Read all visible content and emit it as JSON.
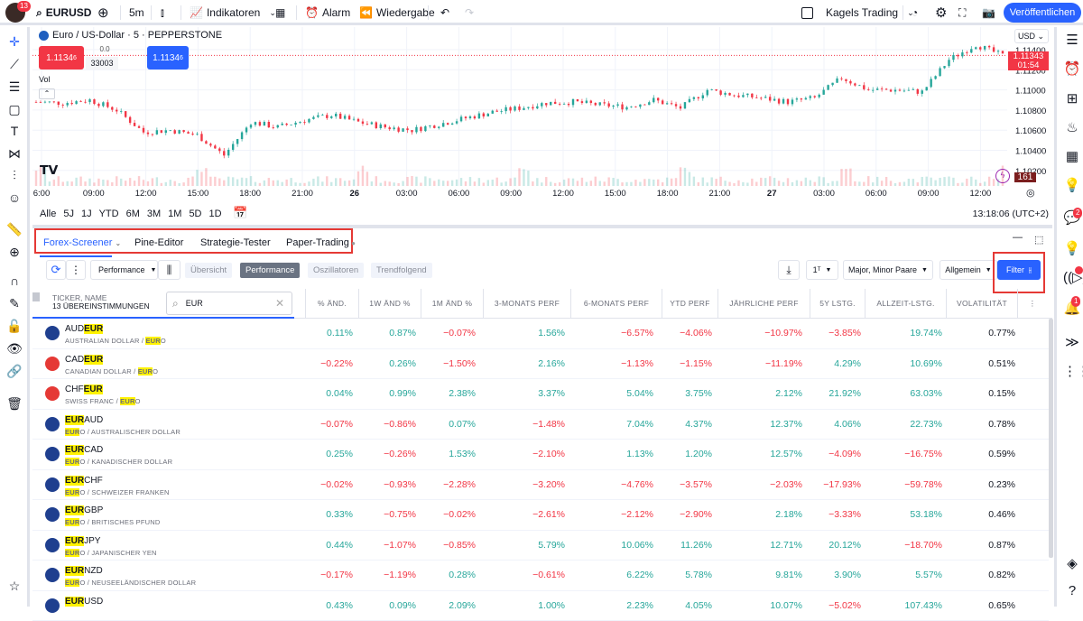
{
  "topbar": {
    "avatar_badge": "13",
    "symbol": "EURUSD",
    "interval": "5m",
    "indicators": "Indikatoren",
    "alarm": "Alarm",
    "replay": "Wiedergabe",
    "layout_name": "Kagels Trading",
    "publish": "Veröffentlichen"
  },
  "chart": {
    "title": "Euro / US-Dollar · 5 · PEPPERSTONE",
    "sell_price": "1.1134",
    "sell_price_sup": "6",
    "spread": "0.0",
    "volume_value": "33003",
    "buy_price": "1.1134",
    "buy_price_sup": "6",
    "volume_label": "Vol",
    "currency": "USD",
    "last_price": "1.11343",
    "countdown": "01:54",
    "volume_tag": "161",
    "price_ticks": [
      "1.11400",
      "1.11200",
      "1.11000",
      "1.10800",
      "1.10600",
      "1.10400",
      "1.10200"
    ],
    "time_ticks": [
      "6:00",
      "09:00",
      "12:00",
      "15:00",
      "18:00",
      "21:00",
      "26",
      "03:00",
      "06:00",
      "09:00",
      "12:00",
      "15:00",
      "18:00",
      "21:00",
      "27",
      "03:00",
      "06:00",
      "09:00",
      "12:00"
    ],
    "price_path": [
      1.1088,
      1.1087,
      1.109,
      1.108,
      1.1058,
      1.106,
      1.1055,
      1.1035,
      1.1068,
      1.1063,
      1.107,
      1.1075,
      1.1068,
      1.1063,
      1.106,
      1.1066,
      1.1072,
      1.1078,
      1.1082,
      1.1087,
      1.1088,
      1.1085,
      1.1083,
      1.109,
      1.1082,
      1.11,
      1.1095,
      1.1092,
      1.1088,
      1.1092,
      1.1112,
      1.11,
      1.11,
      1.1098,
      1.113,
      1.1145,
      1.1134
    ],
    "up_color": "#26a69a",
    "down_color": "#f23645"
  },
  "ranges": [
    "1D",
    "5D",
    "1M",
    "3M",
    "6M",
    "YTD",
    "1J",
    "5J",
    "Alle"
  ],
  "clock": "13:18:06 (UTC+2)",
  "tabs": [
    "Forex-Screener",
    "Pine-Editor",
    "Strategie-Tester",
    "Paper-Trading"
  ],
  "screener": {
    "preset": "Performance",
    "views": [
      "Übersicht",
      "Performance",
      "Oszillatoren",
      "Trendfolgend"
    ],
    "interval": "1ᵀ",
    "pairs": "Major, Minor Paare",
    "general": "Allgemein",
    "filter": "Filter",
    "ticker_header": "TICKER, NAME",
    "matches": "13 ÜBEREINSTIMMUNGEN",
    "search_value": "EUR",
    "columns": [
      "% ÄND.",
      "1W ÄND %",
      "1M ÄND %",
      "3-MONATS PERF",
      "6-MONATS PERF",
      "YTD PERF",
      "JÄHRLICHE PERF",
      "5Y LSTG.",
      "ALLZEIT-LSTG.",
      "VOLATILITÄT"
    ],
    "rows": [
      {
        "pre": "AUD",
        "hl": "EUR",
        "post": "",
        "npre": "AUSTRALIAN DOLLAR / ",
        "nhl": "EUR",
        "npost": "O",
        "flag": "#1f3f8f",
        "v": [
          "0.11%",
          "0.87%",
          "−0.07%",
          "1.56%",
          "−6.57%",
          "−4.06%",
          "−10.97%",
          "−3.85%",
          "19.74%",
          "0.77%"
        ]
      },
      {
        "pre": "CAD",
        "hl": "EUR",
        "post": "",
        "npre": "CANADIAN DOLLAR / ",
        "nhl": "EUR",
        "npost": "O",
        "flag": "#e53935",
        "v": [
          "−0.22%",
          "0.26%",
          "−1.50%",
          "2.16%",
          "−1.13%",
          "−1.15%",
          "−11.19%",
          "4.29%",
          "10.69%",
          "0.51%"
        ]
      },
      {
        "pre": "CHF",
        "hl": "EUR",
        "post": "",
        "npre": "SWISS FRANC / ",
        "nhl": "EUR",
        "npost": "O",
        "flag": "#e53935",
        "v": [
          "0.04%",
          "0.99%",
          "2.38%",
          "3.37%",
          "5.04%",
          "3.75%",
          "2.12%",
          "21.92%",
          "63.03%",
          "0.15%"
        ]
      },
      {
        "pre": "",
        "hl": "EUR",
        "post": "AUD",
        "npre": "",
        "nhl": "EUR",
        "npost": "O / AUSTRALISCHER DOLLAR",
        "flag": "#1f3f8f",
        "v": [
          "−0.07%",
          "−0.86%",
          "0.07%",
          "−1.48%",
          "7.04%",
          "4.37%",
          "12.37%",
          "4.06%",
          "22.73%",
          "0.78%"
        ]
      },
      {
        "pre": "",
        "hl": "EUR",
        "post": "CAD",
        "npre": "",
        "nhl": "EUR",
        "npost": "O / KANADISCHER DOLLAR",
        "flag": "#1f3f8f",
        "v": [
          "0.25%",
          "−0.26%",
          "1.53%",
          "−2.10%",
          "1.13%",
          "1.20%",
          "12.57%",
          "−4.09%",
          "−16.75%",
          "0.59%"
        ]
      },
      {
        "pre": "",
        "hl": "EUR",
        "post": "CHF",
        "npre": "",
        "nhl": "EUR",
        "npost": "O / SCHWEIZER FRANKEN",
        "flag": "#1f3f8f",
        "v": [
          "−0.02%",
          "−0.93%",
          "−2.28%",
          "−3.20%",
          "−4.76%",
          "−3.57%",
          "−2.03%",
          "−17.93%",
          "−59.78%",
          "0.23%"
        ]
      },
      {
        "pre": "",
        "hl": "EUR",
        "post": "GBP",
        "npre": "",
        "nhl": "EUR",
        "npost": "O / BRITISCHES PFUND",
        "flag": "#1f3f8f",
        "v": [
          "0.33%",
          "−0.75%",
          "−0.02%",
          "−2.61%",
          "−2.12%",
          "−2.90%",
          "2.18%",
          "−3.33%",
          "53.18%",
          "0.46%"
        ]
      },
      {
        "pre": "",
        "hl": "EUR",
        "post": "JPY",
        "npre": "",
        "nhl": "EUR",
        "npost": "O / JAPANISCHER YEN",
        "flag": "#1f3f8f",
        "v": [
          "0.44%",
          "−1.07%",
          "−0.85%",
          "5.79%",
          "10.06%",
          "11.26%",
          "12.71%",
          "20.12%",
          "−18.70%",
          "0.87%"
        ]
      },
      {
        "pre": "",
        "hl": "EUR",
        "post": "NZD",
        "npre": "",
        "nhl": "EUR",
        "npost": "O / NEUSEELÄNDISCHER DOLLAR",
        "flag": "#1f3f8f",
        "v": [
          "−0.17%",
          "−1.19%",
          "0.28%",
          "−0.61%",
          "6.22%",
          "5.78%",
          "9.81%",
          "3.90%",
          "5.57%",
          "0.82%"
        ]
      },
      {
        "pre": "",
        "hl": "EUR",
        "post": "USD",
        "npre": "",
        "nhl": "",
        "npost": "",
        "flag": "#1f3f8f",
        "v": [
          "0.43%",
          "0.09%",
          "2.09%",
          "1.00%",
          "2.23%",
          "4.05%",
          "10.07%",
          "−5.02%",
          "107.43%",
          "0.65%"
        ]
      }
    ]
  },
  "right_badges": {
    "chat": "2",
    "alerts": "1"
  }
}
